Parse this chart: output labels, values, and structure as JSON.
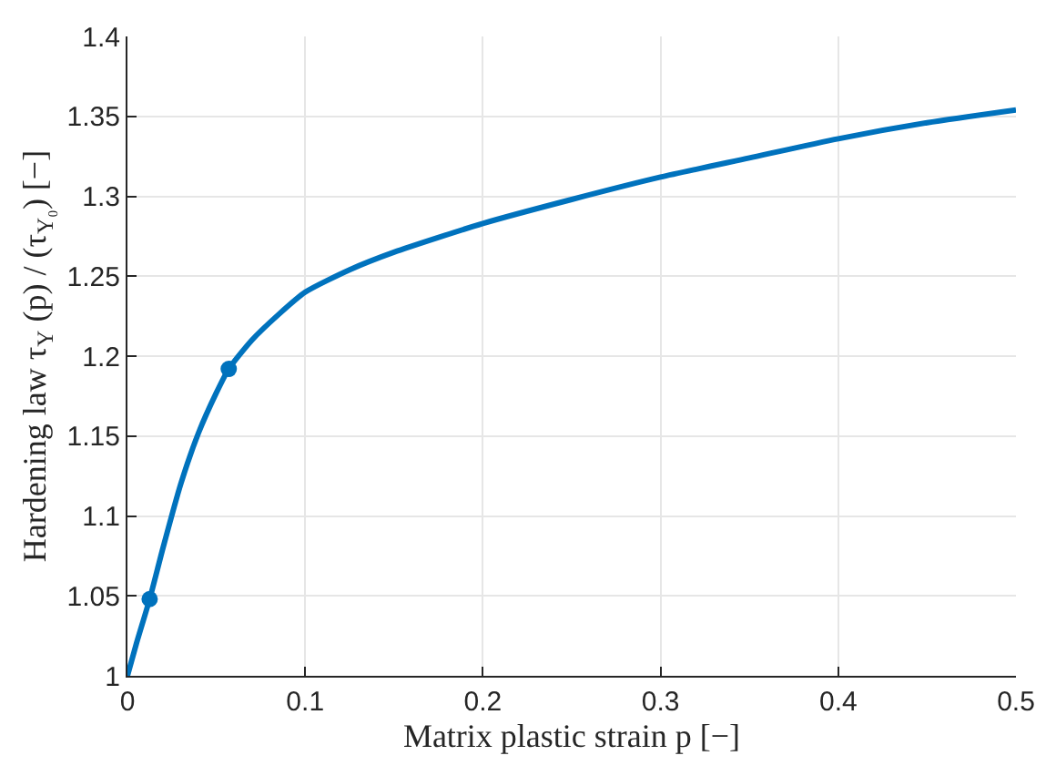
{
  "chart_data": {
    "type": "line",
    "xlabel": "Matrix plastic strain p [−]",
    "ylabel": "Hardening law τ$_{Y}$ (p) / (τ$_{Y₀}$) [−]",
    "series": [
      {
        "color": "#0072bd",
        "marker": "none",
        "x": [
          0,
          0.005,
          0.0125,
          0.02,
          0.03,
          0.04,
          0.05,
          0.057,
          0.07,
          0.085,
          0.1,
          0.125,
          0.15,
          0.2,
          0.25,
          0.3,
          0.35,
          0.4,
          0.45,
          0.5
        ],
        "values": [
          1,
          1.02,
          1.048,
          1.08,
          1.12,
          1.152,
          1.177,
          1.192,
          1.21,
          1.226,
          1.24,
          1.254,
          1.265,
          1.283,
          1.298,
          1.312,
          1.324,
          1.336,
          1.346,
          1.354
        ]
      },
      {
        "type": "scatter",
        "color": "#0072bd",
        "marker": "circle",
        "x": [
          0.0125,
          0.057
        ],
        "values": [
          1.048,
          1.192
        ]
      }
    ],
    "xlim": [
      0,
      0.5
    ],
    "xticks": [
      0,
      0.1,
      0.2,
      0.3,
      0.4,
      0.5
    ],
    "ylim": [
      1,
      1.4
    ],
    "yticks": [
      1,
      1.05,
      1.1,
      1.15,
      1.2,
      1.25,
      1.3,
      1.35,
      1.4
    ],
    "grid": true
  }
}
